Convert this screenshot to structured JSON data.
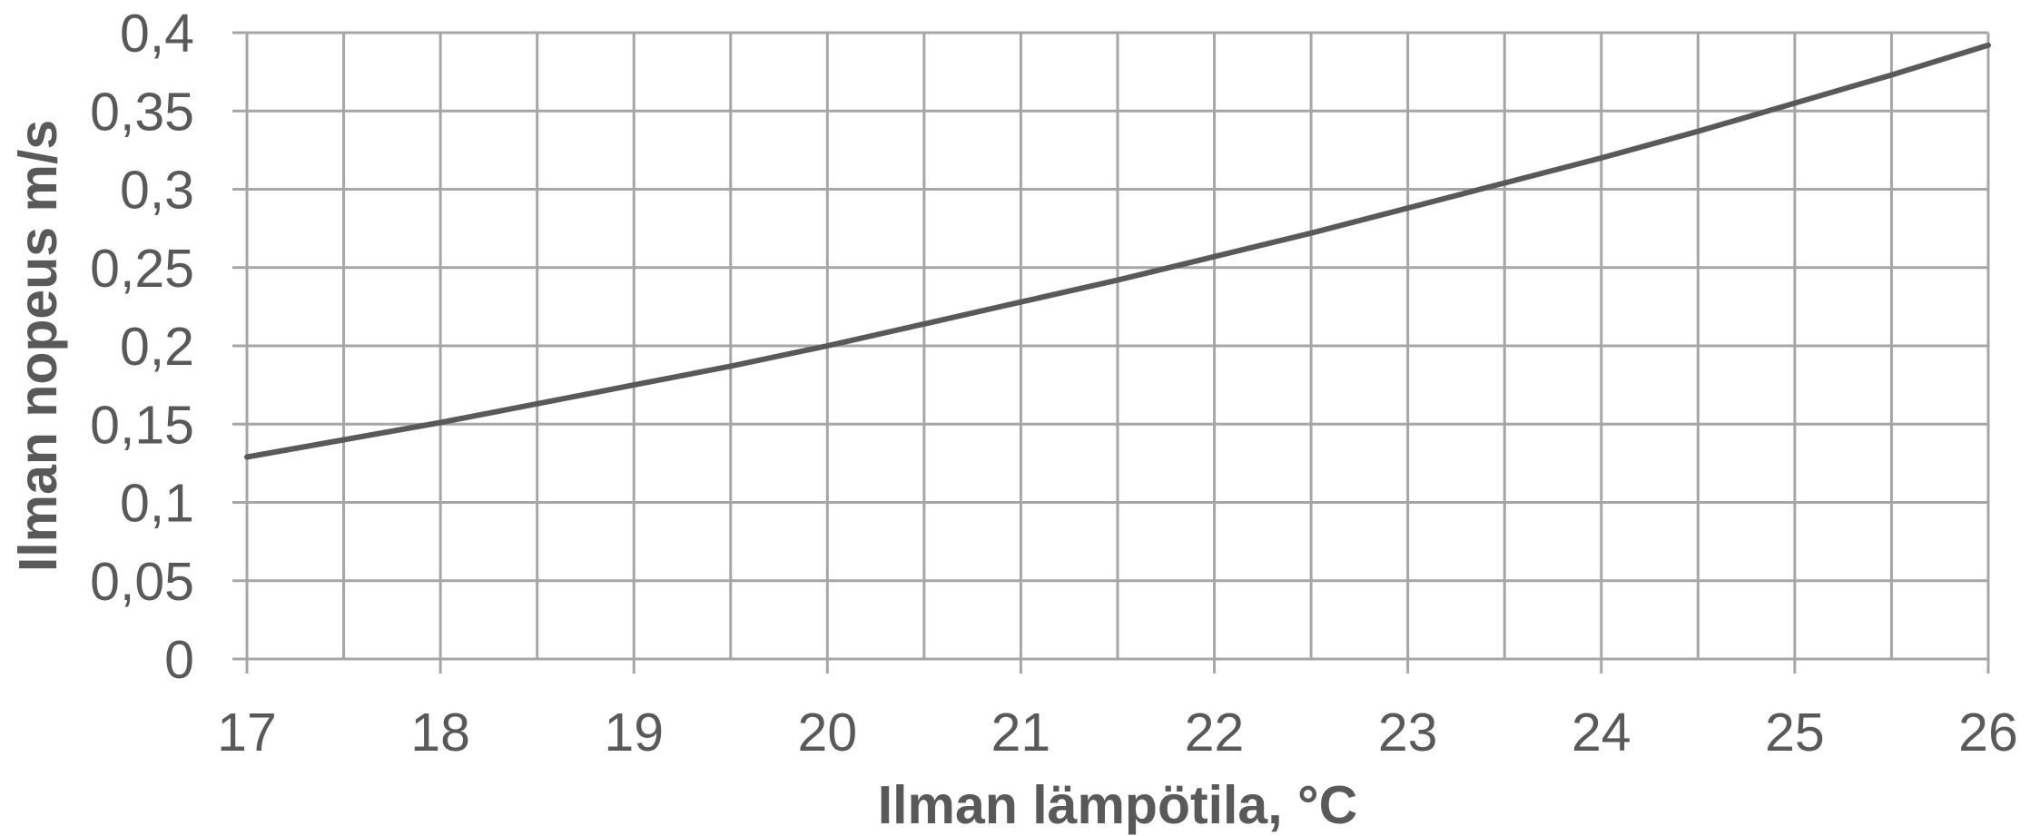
{
  "chart_data": {
    "type": "line",
    "title": "",
    "xlabel": "Ilman lämpötila, °C",
    "ylabel": "Ilman nopeus m/s",
    "xlim": [
      17,
      26
    ],
    "ylim": [
      0,
      0.4
    ],
    "x_ticks": [
      "17",
      "18",
      "19",
      "20",
      "21",
      "22",
      "23",
      "24",
      "25",
      "26"
    ],
    "y_ticks": [
      "0",
      "0,05",
      "0,1",
      "0,15",
      "0,2",
      "0,25",
      "0,3",
      "0,35",
      "0,4"
    ],
    "grid": true,
    "legend": "none",
    "series": [
      {
        "color": "#595959",
        "x": [
          17,
          17.5,
          18,
          18.5,
          19,
          19.5,
          20,
          20.5,
          21,
          21.5,
          22,
          22.5,
          23,
          23.5,
          24,
          24.5,
          25,
          25.5,
          26
        ],
        "y": [
          0.129,
          0.14,
          0.151,
          0.163,
          0.175,
          0.187,
          0.2,
          0.214,
          0.228,
          0.242,
          0.257,
          0.272,
          0.288,
          0.304,
          0.32,
          0.337,
          0.355,
          0.373,
          0.392
        ]
      }
    ]
  }
}
